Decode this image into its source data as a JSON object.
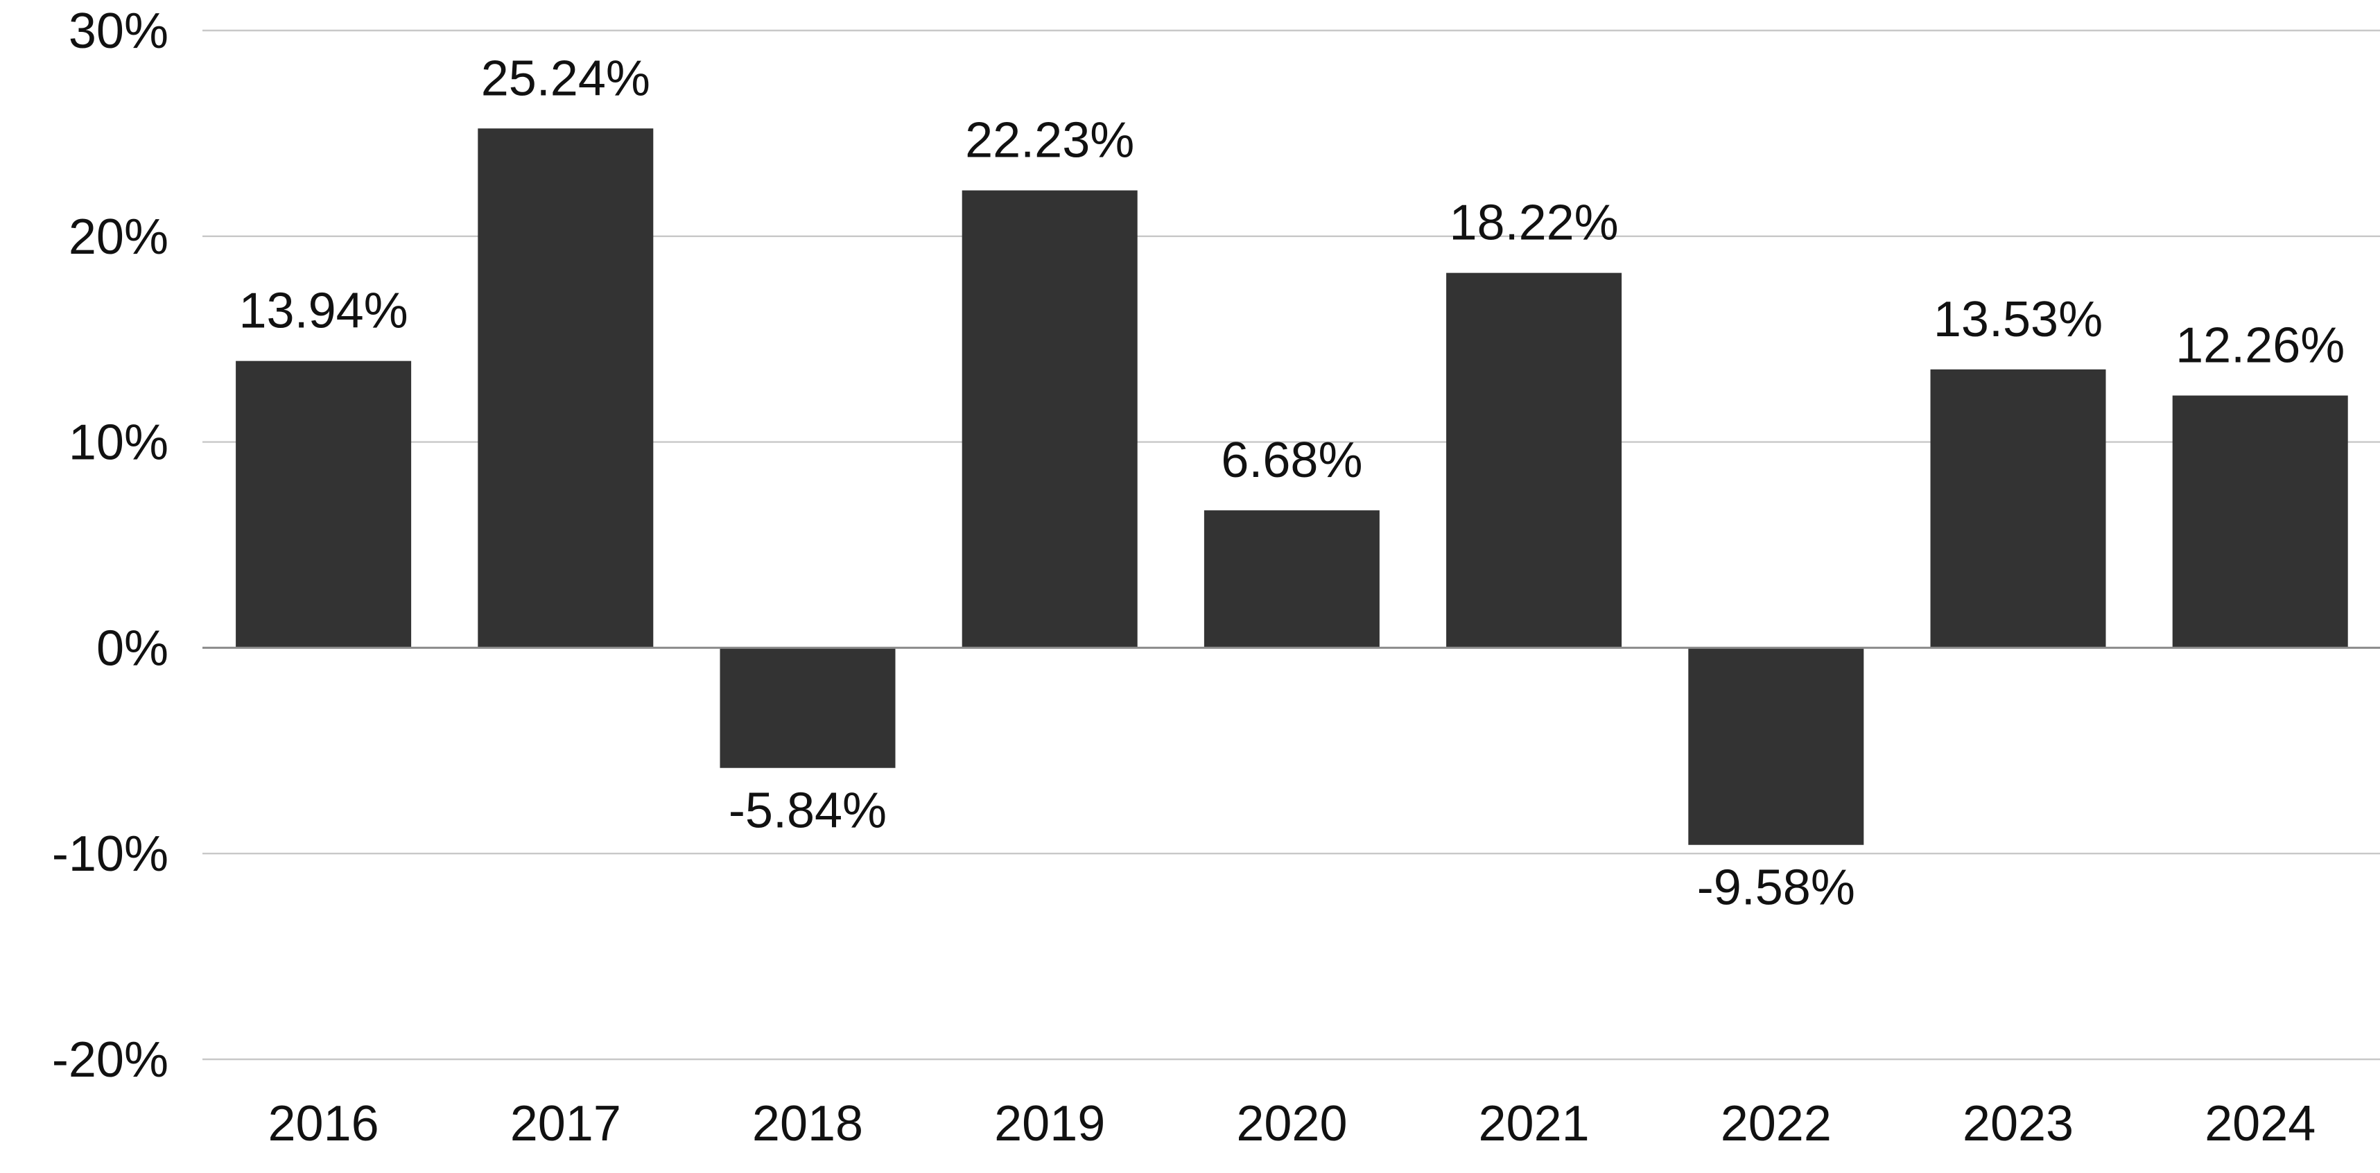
{
  "chart_data": {
    "type": "bar",
    "title": "",
    "xlabel": "",
    "ylabel": "",
    "categories": [
      "2016",
      "2017",
      "2018",
      "2019",
      "2020",
      "2021",
      "2022",
      "2023",
      "2024"
    ],
    "values": [
      13.94,
      25.24,
      -5.84,
      22.23,
      6.68,
      18.22,
      -9.58,
      13.53,
      12.26
    ],
    "data_labels": [
      "13.94%",
      "25.24%",
      "-5.84%",
      "22.23%",
      "6.68%",
      "18.22%",
      "-9.58%",
      "13.53%",
      "12.26%"
    ],
    "ylim": [
      -20,
      30
    ],
    "yticks": [
      30,
      20,
      10,
      0,
      -10,
      -20
    ],
    "ytick_labels": [
      "30%",
      "20%",
      "10%",
      "0%",
      "-10%",
      "-20%"
    ],
    "grid": true,
    "legend": "none",
    "colors": {
      "bar": "#333333",
      "grid": "#c8c8c8",
      "zero_line": "#8c8c8c",
      "text": "#111111"
    }
  }
}
